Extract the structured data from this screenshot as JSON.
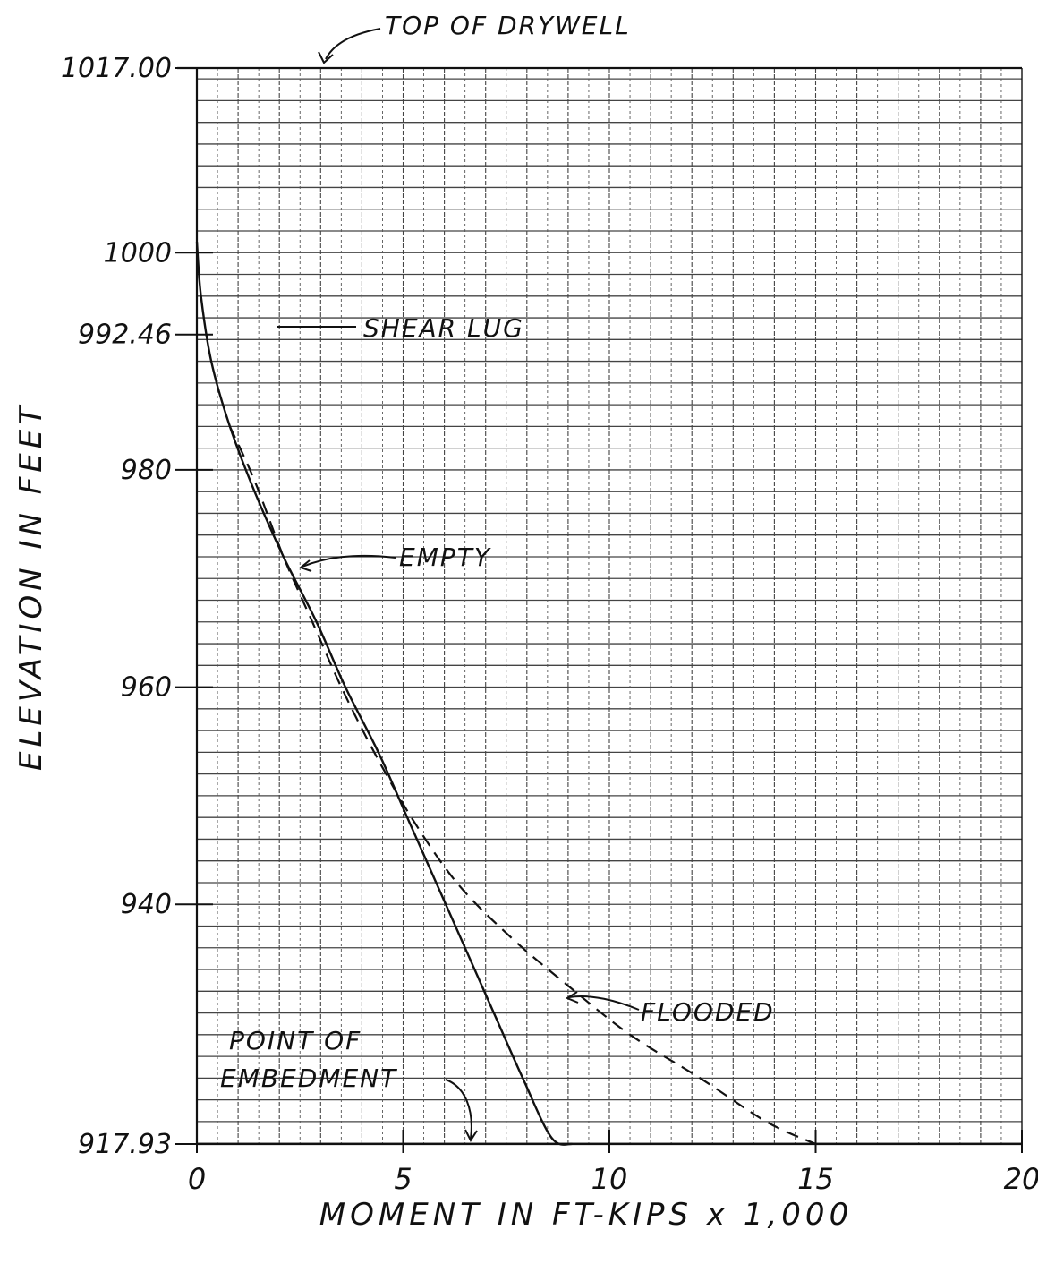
{
  "chart_data": {
    "type": "line",
    "title": "",
    "xlabel": "MOMENT IN FT-KIPS x 1,000",
    "ylabel": "ELEVATION IN FEET",
    "xlim": [
      0,
      20
    ],
    "ylim": [
      917.93,
      1017.0
    ],
    "x_ticks": [
      {
        "value": 0,
        "label": "0"
      },
      {
        "value": 5,
        "label": "5"
      },
      {
        "value": 10,
        "label": "10"
      },
      {
        "value": 15,
        "label": "15"
      },
      {
        "value": 20,
        "label": "20"
      }
    ],
    "y_ticks": [
      {
        "value": 1017.0,
        "label": "1017.00"
      },
      {
        "value": 1000,
        "label": "1000"
      },
      {
        "value": 992.46,
        "label": "992.46"
      },
      {
        "value": 980,
        "label": "980"
      },
      {
        "value": 960,
        "label": "960"
      },
      {
        "value": 940,
        "label": "940"
      },
      {
        "value": 917.93,
        "label": "917.93"
      }
    ],
    "grid": true,
    "series": [
      {
        "key": "empty",
        "style": "solid",
        "points": [
          [
            0,
            1001
          ],
          [
            0.1,
            996
          ],
          [
            0.35,
            990
          ],
          [
            0.8,
            984
          ],
          [
            1.4,
            978
          ],
          [
            2.1,
            972
          ],
          [
            2.9,
            966
          ],
          [
            3.6,
            960
          ],
          [
            4.4,
            954
          ],
          [
            5.1,
            948
          ],
          [
            5.8,
            942
          ],
          [
            6.5,
            936
          ],
          [
            7.2,
            930
          ],
          [
            7.9,
            924
          ],
          [
            8.6,
            918.5
          ],
          [
            9.1,
            917.93
          ]
        ]
      },
      {
        "key": "flooded",
        "style": "dashed",
        "points": [
          [
            0.8,
            984
          ],
          [
            1.4,
            979
          ],
          [
            2.1,
            972
          ],
          [
            2.8,
            966
          ],
          [
            3.5,
            960
          ],
          [
            4.3,
            954
          ],
          [
            5.2,
            948
          ],
          [
            6.3,
            942
          ],
          [
            7.6,
            937
          ],
          [
            9.0,
            932.5
          ],
          [
            10.5,
            928
          ],
          [
            12.2,
            924
          ],
          [
            13.8,
            920
          ],
          [
            15.0,
            917.93
          ]
        ]
      }
    ],
    "annotations": {
      "top": {
        "text": "TOP OF DRYWELL",
        "x": 3.5,
        "y": 1017.0
      },
      "shear_lug": {
        "text": "SHEAR LUG",
        "x": 3.8,
        "y": 992.46
      },
      "empty": {
        "text": "EMPTY",
        "x": 2.6,
        "y": 972.0
      },
      "flooded": {
        "text": "FLOODED",
        "x": 9.1,
        "y": 929.5
      },
      "embedment_line1": "POINT OF",
      "embedment_line2": "EMBEDMENT",
      "embedment": {
        "x": 6.6,
        "y": 917.93
      }
    }
  }
}
